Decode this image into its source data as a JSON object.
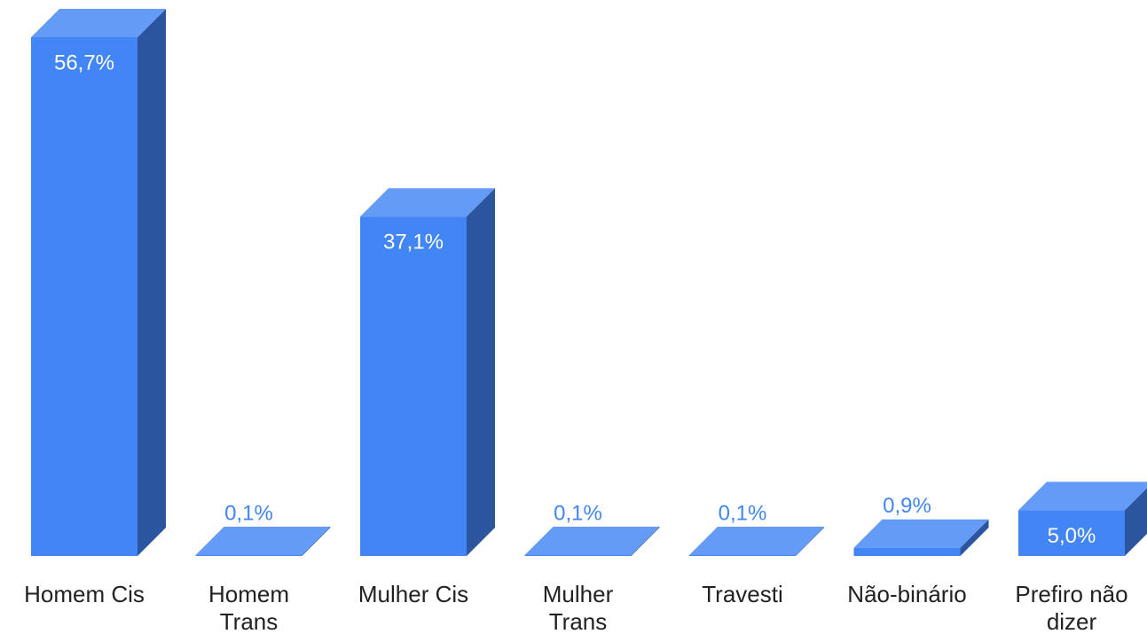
{
  "chart_data": {
    "type": "bar",
    "categories": [
      "Homem Cis",
      "Homem Trans",
      "Mulher Cis",
      "Mulher Trans",
      "Travesti",
      "Não-binário",
      "Prefiro não dizer"
    ],
    "values": [
      56.7,
      0.1,
      37.1,
      0.1,
      0.1,
      0.9,
      5.0
    ],
    "value_labels": [
      "56,7%",
      "0,1%",
      "37,1%",
      "0,1%",
      "0,1%",
      "0,9%",
      "5,0%"
    ],
    "color": "#4285f4"
  }
}
